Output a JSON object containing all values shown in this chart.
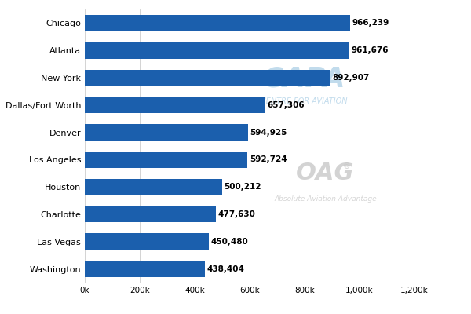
{
  "categories": [
    "Washington",
    "Las Vegas",
    "Charlotte",
    "Houston",
    "Los Angeles",
    "Denver",
    "Dallas/Fort Worth",
    "New York",
    "Atlanta",
    "Chicago"
  ],
  "values": [
    438404,
    450480,
    477630,
    500212,
    592724,
    594925,
    657306,
    892907,
    961676,
    966239
  ],
  "labels": [
    "438,404",
    "450,480",
    "477,630",
    "500,212",
    "592,724",
    "594,925",
    "657,306",
    "892,907",
    "961,676",
    "966,239"
  ],
  "bar_color": "#1B5FAD",
  "background_color": "#ffffff",
  "xlim": [
    0,
    1200000
  ],
  "xticks": [
    0,
    200000,
    400000,
    600000,
    800000,
    1000000,
    1200000
  ],
  "xtick_labels": [
    "0k",
    "200k",
    "400k",
    "600k",
    "800k",
    "1,000k",
    "1,200k"
  ],
  "bar_height": 0.6,
  "label_fontsize": 7.5,
  "ytick_fontsize": 8.0,
  "xtick_fontsize": 7.5
}
